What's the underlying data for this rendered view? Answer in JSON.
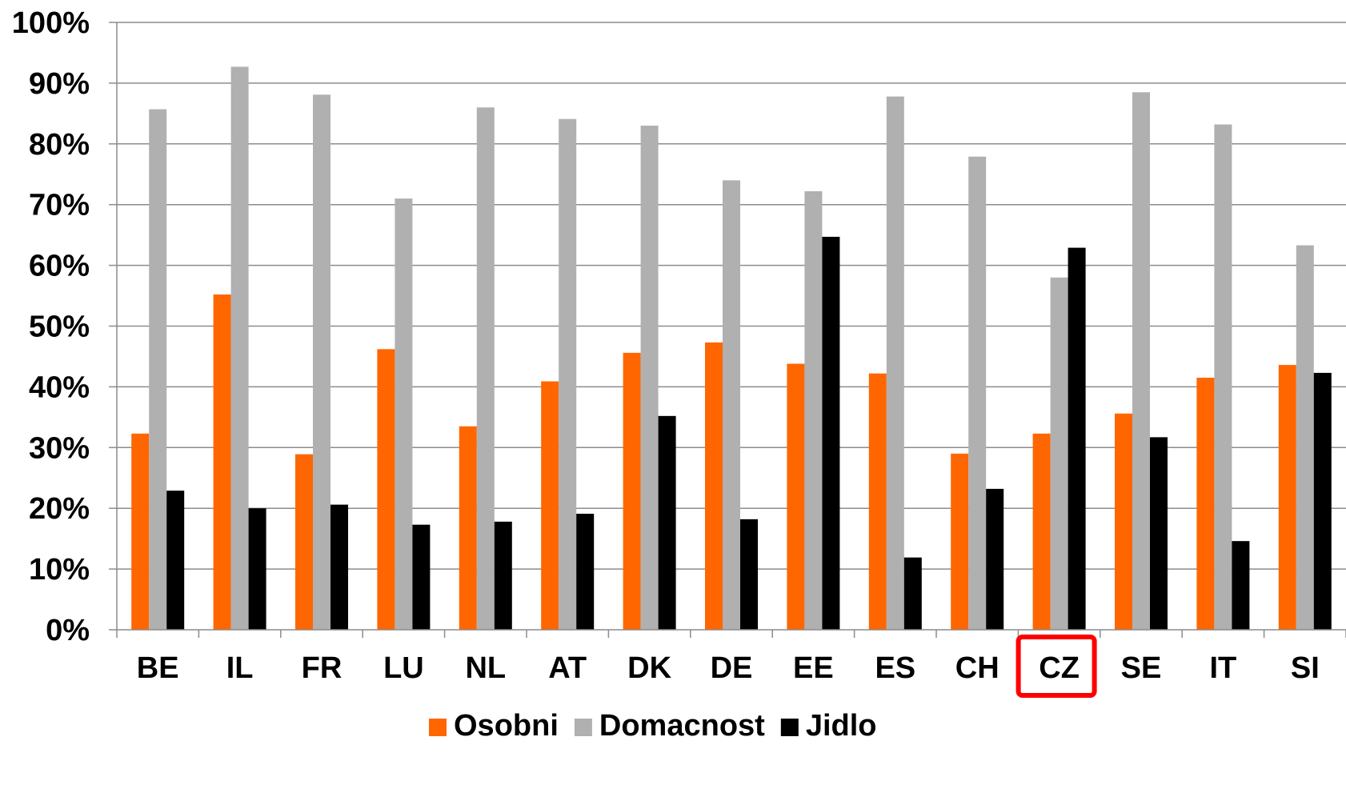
{
  "chart_data": {
    "type": "bar",
    "categories": [
      "BE",
      "IL",
      "FR",
      "LU",
      "NL",
      "AT",
      "DK",
      "DE",
      "EE",
      "ES",
      "CH",
      "CZ",
      "SE",
      "IT",
      "SI"
    ],
    "series": [
      {
        "name": "Osobni",
        "color": "#ff6600",
        "values": [
          32.3,
          55.2,
          28.9,
          46.2,
          33.5,
          40.9,
          45.6,
          47.3,
          43.8,
          42.2,
          29.0,
          32.3,
          35.6,
          41.5,
          43.6
        ]
      },
      {
        "name": "Domacnost",
        "color": "#b0b0b0",
        "values": [
          85.7,
          92.7,
          88.1,
          71.0,
          86.0,
          84.1,
          83.0,
          74.0,
          72.2,
          87.8,
          77.9,
          58.0,
          88.5,
          83.2,
          63.3
        ]
      },
      {
        "name": "Jidlo",
        "color": "#000000",
        "values": [
          22.9,
          20.0,
          20.6,
          17.3,
          17.8,
          19.1,
          35.2,
          18.2,
          64.7,
          11.9,
          23.2,
          62.9,
          31.7,
          14.6,
          42.3
        ]
      }
    ],
    "yticks": [
      "0%",
      "10%",
      "20%",
      "30%",
      "40%",
      "50%",
      "60%",
      "70%",
      "80%",
      "90%",
      "100%"
    ],
    "ylim": [
      0,
      100
    ],
    "xlabel": "",
    "ylabel": "",
    "grid": true,
    "legend_position": "bottom",
    "highlighted_category": "CZ",
    "highlight_color": "#ff0000"
  }
}
